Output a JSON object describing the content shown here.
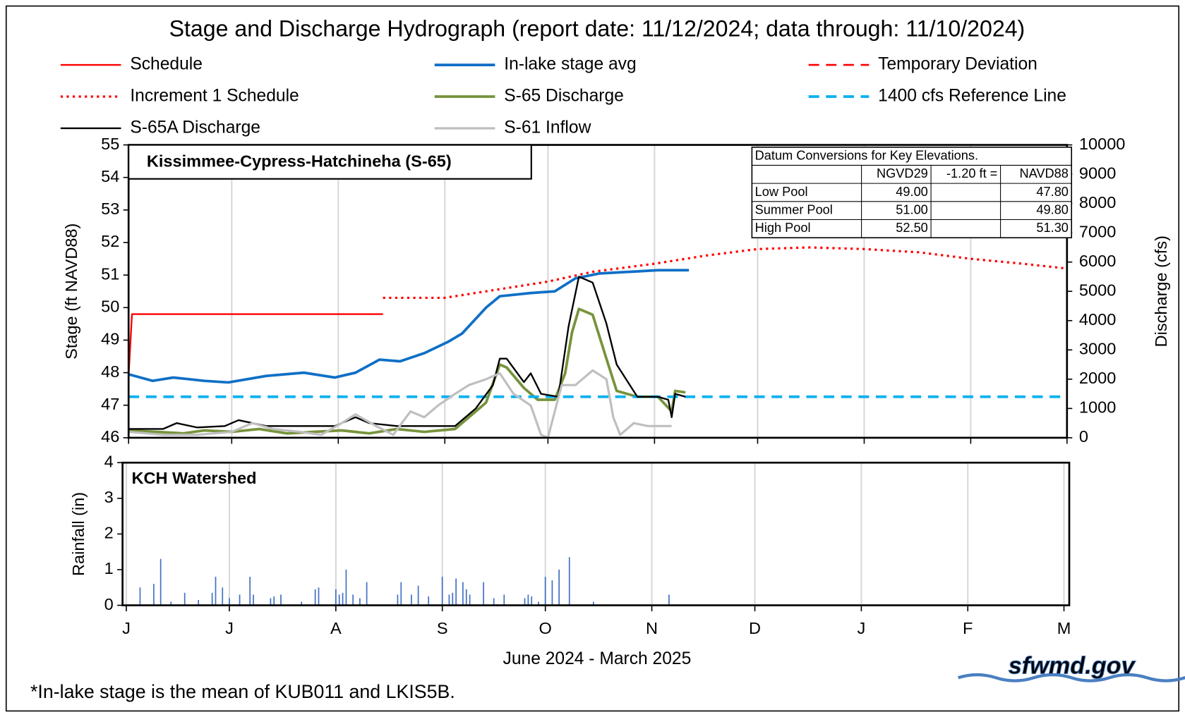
{
  "title": "Stage and Discharge Hydrograph  (report date: 11/12/2024; data through:  11/10/2024)",
  "footnote": "*In-lake stage is the mean of KUB011 and LKIS5B.",
  "logo": "sfwmd.gov",
  "datum_table": {
    "title": "Datum Conversions for Key Elevations.",
    "columns": [
      "NGVD29",
      "-1.20 ft =",
      "NAVD88"
    ],
    "rows": [
      [
        "Low Pool",
        "49.00",
        "47.80"
      ],
      [
        "Summer Pool",
        "51.00",
        "49.80"
      ],
      [
        "High Pool",
        "52.50",
        "51.30"
      ]
    ]
  },
  "chart_data": [
    {
      "type": "line",
      "panel_label": "Kissimmee-Cypress-Hatchineha  (S-65)",
      "ylabel": "Stage (ft NAVD88)",
      "y2label": "Discharge (cfs)",
      "xlim": [
        0,
        273
      ],
      "xticks": [
        {
          "value": 0,
          "label": "J"
        },
        {
          "value": 30,
          "label": "J"
        },
        {
          "value": 61,
          "label": "A"
        },
        {
          "value": 92,
          "label": "S"
        },
        {
          "value": 122,
          "label": "O"
        },
        {
          "value": 153,
          "label": "N"
        },
        {
          "value": 183,
          "label": "D"
        },
        {
          "value": 214,
          "label": "J"
        },
        {
          "value": 245,
          "label": "F"
        },
        {
          "value": 273,
          "label": "M"
        }
      ],
      "ylim": [
        46,
        55
      ],
      "yticks": [
        46,
        47,
        48,
        49,
        50,
        51,
        52,
        53,
        54,
        55
      ],
      "y2lim": [
        0,
        10000
      ],
      "y2ticks": [
        0,
        1000,
        2000,
        3000,
        4000,
        5000,
        6000,
        7000,
        8000,
        9000,
        10000
      ],
      "grid": "x",
      "series": [
        {
          "name": "Schedule",
          "color": "#ff0000",
          "style": "solid",
          "width": 2.2,
          "x": [
            0,
            1,
            74
          ],
          "values": [
            47.9,
            49.8,
            49.8
          ]
        },
        {
          "name": "In-lake stage avg",
          "color": "#0f6fc6",
          "style": "solid",
          "width": 3.5,
          "x": [
            0,
            7,
            13,
            22,
            29,
            40,
            51,
            60,
            66,
            73,
            79,
            86,
            93,
            97,
            104,
            108,
            117,
            124,
            130,
            137,
            146,
            154,
            163
          ],
          "values": [
            47.95,
            47.75,
            47.85,
            47.75,
            47.7,
            47.9,
            48.0,
            47.85,
            48.0,
            48.4,
            48.35,
            48.6,
            48.95,
            49.2,
            50.0,
            50.35,
            50.45,
            50.5,
            50.9,
            51.05,
            51.1,
            51.15,
            51.15
          ]
        },
        {
          "name": "Temporary Deviation",
          "color": "#ff0000",
          "style": "dashed",
          "width": 2.5,
          "x": [],
          "values": []
        },
        {
          "name": "Increment 1 Schedule",
          "color": "#ff0000",
          "style": "dotted",
          "width": 3,
          "x": [
            74,
            92,
            110,
            122,
            135,
            153,
            168,
            183,
            198,
            214,
            230,
            245,
            260,
            273
          ],
          "values": [
            50.3,
            50.3,
            50.6,
            50.8,
            51.1,
            51.35,
            51.6,
            51.8,
            51.85,
            51.8,
            51.7,
            51.5,
            51.35,
            51.2
          ]
        },
        {
          "name": "S-65 Discharge",
          "color": "#77933c",
          "style": "solid",
          "width": 3.5,
          "axis": "y2",
          "x": [
            0,
            8,
            16,
            22,
            30,
            38,
            46,
            54,
            62,
            70,
            78,
            86,
            95,
            99,
            104,
            108,
            110,
            115,
            119,
            124,
            127,
            129,
            131,
            135,
            139,
            142,
            148,
            154,
            158,
            159,
            162
          ],
          "values": [
            250,
            200,
            150,
            250,
            200,
            300,
            150,
            200,
            250,
            150,
            300,
            200,
            300,
            700,
            1200,
            2500,
            2400,
            1700,
            1300,
            1300,
            2200,
            3600,
            4400,
            4200,
            2700,
            1600,
            1400,
            1400,
            900,
            1600,
            1550
          ]
        },
        {
          "name": "1400 cfs Reference Line",
          "color": "#00b0f0",
          "style": "dashed",
          "width": 3.5,
          "axis": "y2",
          "x": [
            0,
            273
          ],
          "values": [
            1400,
            1400
          ]
        },
        {
          "name": "S-65A Discharge",
          "color": "#000000",
          "style": "solid",
          "width": 2.2,
          "axis": "y2",
          "x": [
            0,
            10,
            14,
            20,
            28,
            32,
            40,
            50,
            60,
            66,
            70,
            78,
            86,
            95,
            101,
            106,
            108,
            110,
            115,
            117,
            120,
            125,
            128,
            131,
            135,
            139,
            142,
            148,
            154,
            157,
            158,
            159,
            162
          ],
          "values": [
            300,
            300,
            500,
            350,
            400,
            600,
            400,
            400,
            400,
            700,
            500,
            400,
            400,
            400,
            1000,
            1800,
            2700,
            2700,
            1900,
            2200,
            1500,
            1400,
            3800,
            5500,
            5300,
            3900,
            2500,
            1400,
            1400,
            1300,
            700,
            1500,
            1400
          ]
        },
        {
          "name": "S-61 Inflow",
          "color": "#bfbfbf",
          "style": "solid",
          "width": 3,
          "axis": "y2",
          "x": [
            0,
            10,
            20,
            30,
            36,
            42,
            50,
            56,
            62,
            66,
            72,
            77,
            82,
            86,
            90,
            95,
            99,
            104,
            108,
            112,
            117,
            120,
            122,
            126,
            130,
            135,
            139,
            141,
            143,
            147,
            151,
            158
          ],
          "values": [
            200,
            100,
            100,
            200,
            500,
            300,
            200,
            100,
            500,
            800,
            400,
            100,
            900,
            700,
            1100,
            1500,
            1800,
            2000,
            2200,
            1500,
            1100,
            100,
            0,
            1800,
            1800,
            2300,
            2000,
            700,
            100,
            500,
            400,
            400
          ]
        }
      ]
    },
    {
      "type": "bar",
      "panel_label": "KCH Watershed",
      "ylabel": "Rainfall (in)",
      "xlabel": "June 2024 - March 2025",
      "xlim": [
        0,
        273
      ],
      "xticks": [
        {
          "value": 0,
          "label": "J"
        },
        {
          "value": 30,
          "label": "J"
        },
        {
          "value": 61,
          "label": "A"
        },
        {
          "value": 92,
          "label": "S"
        },
        {
          "value": 122,
          "label": "O"
        },
        {
          "value": 153,
          "label": "N"
        },
        {
          "value": 183,
          "label": "D"
        },
        {
          "value": 214,
          "label": "J"
        },
        {
          "value": 245,
          "label": "F"
        },
        {
          "value": 273,
          "label": "M"
        }
      ],
      "ylim": [
        0,
        4
      ],
      "yticks": [
        0,
        1,
        2,
        3,
        4
      ],
      "grid": "x",
      "color": "#4472c4",
      "x": [
        4,
        8,
        10,
        13,
        17,
        21,
        25,
        26,
        28,
        30,
        33,
        36,
        37,
        42,
        43,
        45,
        51,
        55,
        56,
        61,
        62,
        63,
        64,
        66,
        68,
        70,
        79,
        80,
        83,
        85,
        88,
        92,
        94,
        95,
        96,
        98,
        99,
        100,
        104,
        107,
        110,
        116,
        117,
        118,
        120,
        122,
        124,
        126,
        129,
        136,
        158
      ],
      "values": [
        0.5,
        0.6,
        1.3,
        0.1,
        0.35,
        0.15,
        0.35,
        0.8,
        0.5,
        0.2,
        0.3,
        0.8,
        0.3,
        0.2,
        0.25,
        0.3,
        0.1,
        0.45,
        0.5,
        0.45,
        0.3,
        0.35,
        1.0,
        0.3,
        0.2,
        0.65,
        0.3,
        0.65,
        0.3,
        0.55,
        0.25,
        0.8,
        0.3,
        0.35,
        0.75,
        0.65,
        0.45,
        0.3,
        0.65,
        0.2,
        0.3,
        0.2,
        0.3,
        0.25,
        0.1,
        0.8,
        0.7,
        1.0,
        1.35,
        0.1,
        0.3
      ]
    }
  ]
}
